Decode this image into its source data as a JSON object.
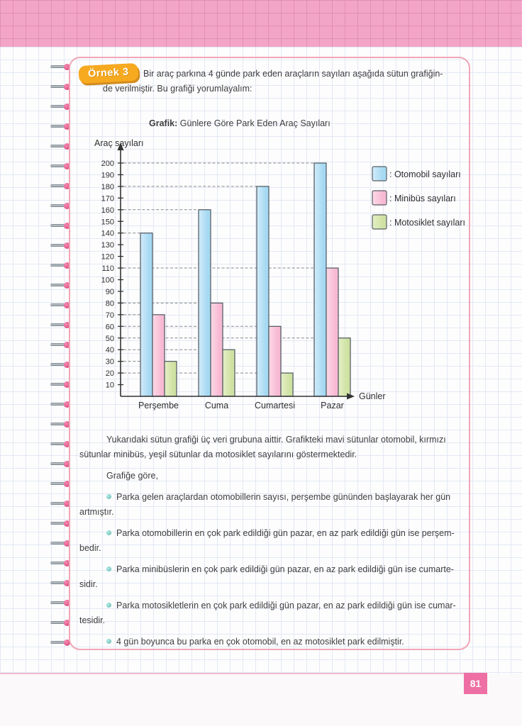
{
  "example": {
    "badge_label": "Örnek 3",
    "intro_text": "Bir araç parkına 4 günde park eden araçların sayıları aşağıda sütun grafiğin-\nde verilmiştir. Bu grafiği yorumlayalım:"
  },
  "chart_data": {
    "type": "bar",
    "title_label": "Grafik:",
    "title_text": "Günlere Göre Park Eden Araç Sayıları",
    "y_axis_label": "Araç sayıları",
    "x_axis_label": "Günler",
    "categories": [
      "Perşembe",
      "Cuma",
      "Cumartesi",
      "Pazar"
    ],
    "y_ticks": [
      10,
      20,
      30,
      40,
      50,
      60,
      70,
      80,
      90,
      100,
      110,
      120,
      130,
      140,
      150,
      160,
      170,
      180,
      190,
      200
    ],
    "ylim": [
      0,
      200
    ],
    "grid": "dashed horizontal guide from y-axis to each bar top",
    "legend_position": "right",
    "series": [
      {
        "name": "Otomobil sayıları",
        "legend_label": ": Otomobil sayıları",
        "values": [
          140,
          160,
          180,
          200
        ],
        "color": "#a6d9f2",
        "color_light": "#d2ecfa",
        "stroke": "#4d565e"
      },
      {
        "name": "Minibüs sayıları",
        "legend_label": ": Minibüs sayıları",
        "values": [
          70,
          80,
          60,
          110
        ],
        "color": "#f8b9d3",
        "color_light": "#fcd9e6",
        "stroke": "#4d565e"
      },
      {
        "name": "Motosiklet sayıları",
        "legend_label": ": Motosiklet sayıları",
        "values": [
          30,
          40,
          20,
          50
        ],
        "color": "#cfe2a2",
        "color_light": "#e4efc6",
        "stroke": "#4d565e"
      }
    ]
  },
  "commentary": {
    "paragraph": "Yukarıdaki sütun grafiği üç veri grubuna aittir. Grafikteki mavi sütunlar otomobil, kırmızı\nsütunlar minibüs, yeşil sütunlar da motosiklet sayılarını göstermektedir.",
    "lead_in": "Grafiğe göre,",
    "bullets": [
      "Parka gelen araçlardan otomobillerin sayısı, perşembe gününden başlayarak her gün\nartmıştır.",
      "Parka otomobillerin en çok park edildiği gün pazar, en az park edildiği gün ise perşem-\nbedir.",
      "Parka minibüslerin en çok park edildiği gün pazar, en az park edildiği gün ise cumarte-\nsidir.",
      "Parka motosikletlerin en çok park edildiği gün pazar, en az park edildiği gün ise cumar-\ntesidir.",
      "4 gün boyunca bu parka en çok otomobil, en az motosiklet park edilmiştir."
    ],
    "bullet_color": "#7fcbc4"
  },
  "footer": {
    "page_number": "81",
    "accent_color": "#ee6fa4"
  }
}
